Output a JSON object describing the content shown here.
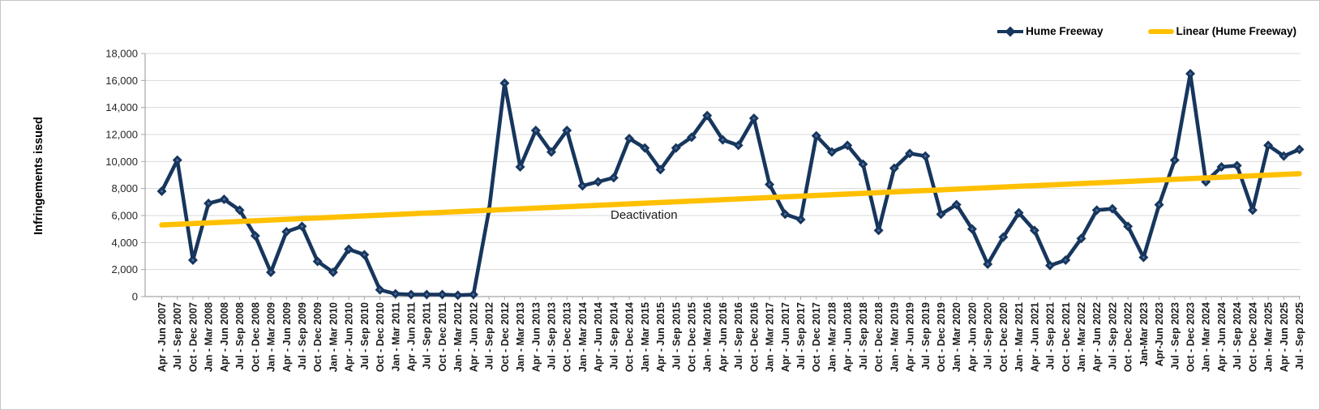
{
  "chart_data": {
    "type": "line",
    "title": "",
    "xlabel": "",
    "ylabel": "Infringements issued",
    "ylim": [
      0,
      18000
    ],
    "y_ticks": [
      "0",
      "2,000",
      "4,000",
      "6,000",
      "8,000",
      "10,000",
      "12,000",
      "14,000",
      "16,000",
      "18,000"
    ],
    "grid": "horizontal",
    "legend_position": "top-right",
    "colors": {
      "series": "#17365D",
      "trend": "#FFC000",
      "gridline": "#D9D9D9",
      "axis": "#A6A6A6"
    },
    "categories": [
      "Apr - Jun 2007",
      "Jul - Sep 2007",
      "Oct - Dec 2007",
      "Jan - Mar 2008",
      "Apr - Jun 2008",
      "Jul - Sep 2008",
      "Oct - Dec 2008",
      "Jan - Mar 2009",
      "Apr - Jun 2009",
      "Jul - Sep 2009",
      "Oct - Dec 2009",
      "Jan - Mar 2010",
      "Apr - Jun 2010",
      "Jul - Sep 2010",
      "Oct - Dec 2010",
      "Jan - Mar 2011",
      "Apr - Jun 2011",
      "Jul - Sep 2011",
      "Oct - Dec 2011",
      "Jan - Mar 2012",
      "Apr - Jun 2012",
      "Jul - Sep 2012",
      "Oct - Dec 2012",
      "Jan - Mar 2013",
      "Apr - Jun 2013",
      "Jul - Sep 2013",
      "Oct - Dec 2013",
      "Jan - Mar 2014",
      "Apr - Jun 2014",
      "Jul - Sep 2014",
      "Oct - Dec 2014",
      "Jan - Mar 2015",
      "Apr - Jun 2015",
      "Jul - Sep 2015",
      "Oct - Dec 2015",
      "Jan - Mar 2016",
      "Apr - Jun 2016",
      "Jul - Sep 2016",
      "Oct - Dec 2016",
      "Jan - Mar 2017",
      "Apr - Jun 2017",
      "Jul - Sep 2017",
      "Oct - Dec 2017",
      "Jan - Mar 2018",
      "Apr - Jun 2018",
      "Jul - Sep 2018",
      "Oct - Dec 2018",
      "Jan - Mar 2019",
      "Apr - Jun 2019",
      "Jul - Sep 2019",
      "Oct - Dec 2019",
      "Jan - Mar 2020",
      "Apr - Jun 2020",
      "Jul - Sep 2020",
      "Oct - Dec 2020",
      "Jan - Mar 2021",
      "Apr - Jun 2021",
      "Jul - Sep 2021",
      "Oct - Dec 2021",
      "Jan - Mar 2022",
      "Apr - Jun 2022",
      "Jul - Sep 2022",
      "Oct - Dec 2022",
      "Jan-Mar 2023",
      "Apr-Jun 2023",
      "Jul - Sep 2023",
      "Oct - Dec 2023",
      "Jan - Mar 2024",
      "Apr - Jun 2024",
      "Jul - Sep 2024",
      "Oct - Dec 2024",
      "Jan - Mar 2025",
      "Apr - Jun 2025",
      "Jul - Sep 2025"
    ],
    "series": [
      {
        "name": "Hume Freeway",
        "color": "#17365D",
        "values": [
          7800,
          10100,
          2700,
          6900,
          7200,
          6400,
          4500,
          1800,
          4800,
          5200,
          2600,
          1800,
          3500,
          3100,
          500,
          200,
          150,
          150,
          150,
          100,
          150,
          6400,
          15800,
          9600,
          12300,
          10700,
          12300,
          8200,
          8500,
          8800,
          11700,
          11000,
          9400,
          11000,
          11800,
          13400,
          11600,
          11200,
          13200,
          8300,
          6100,
          5700,
          11900,
          10700,
          11200,
          9800,
          4900,
          9500,
          10600,
          10400,
          6100,
          6800,
          5000,
          2400,
          4400,
          6200,
          4900,
          2300,
          2700,
          4300,
          6400,
          6500,
          5200,
          2900,
          6800,
          10100,
          16500,
          8500,
          9600,
          9700,
          6400,
          11200,
          10400,
          10900
        ]
      }
    ],
    "trend": {
      "label": "Linear (Hume Freeway)",
      "color": "#FFC000",
      "start_value": 5300,
      "end_value": 9100
    },
    "annotations": [
      {
        "text": "Deactivation"
      }
    ]
  }
}
